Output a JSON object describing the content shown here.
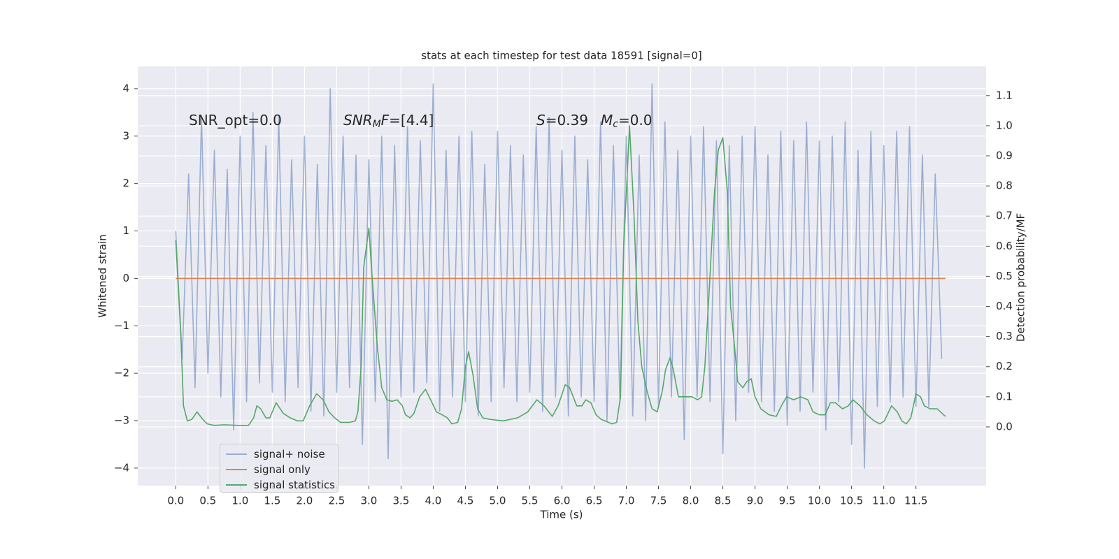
{
  "chart_data": {
    "type": "line",
    "title": "stats at each timestep for test data 18591 [signal=0]",
    "xlabel": "Time (s)",
    "ylabel": "Whitened strain",
    "y2label": "Detection probability/MF",
    "xlim": [
      -0.59,
      12.59
    ],
    "ylim": [
      -4.37,
      4.47
    ],
    "y2lim": [
      -0.195,
      1.197
    ],
    "xticks": [
      {
        "value": 0,
        "label": "0.0"
      },
      0.5,
      {
        "value": 1,
        "label": "1.0"
      },
      1.5,
      {
        "value": 2,
        "label": "2.0"
      },
      2.5,
      {
        "value": 3,
        "label": "3.0"
      },
      3.5,
      {
        "value": 4,
        "label": "4.0"
      },
      4.5,
      {
        "value": 5,
        "label": "5.0"
      },
      5.5,
      {
        "value": 6,
        "label": "6.0"
      },
      6.5,
      {
        "value": 7,
        "label": "7.0"
      },
      7.5,
      {
        "value": 8,
        "label": "8.0"
      },
      8.5,
      {
        "value": 9,
        "label": "9.0"
      },
      9.5,
      {
        "value": 10,
        "label": "10.0"
      },
      10.5,
      {
        "value": 11,
        "label": "11.0"
      },
      11.5
    ],
    "yticks": [
      {
        "value": -4,
        "label": "−4"
      },
      {
        "value": -3,
        "label": "−3"
      },
      {
        "value": -2,
        "label": "−2"
      },
      {
        "value": -1,
        "label": "−1"
      },
      0,
      1,
      2,
      3,
      4
    ],
    "y2ticks": [
      {
        "value": 0,
        "label": "0.0"
      },
      0.1,
      0.2,
      0.3,
      0.4,
      0.5,
      0.6,
      0.7,
      0.8,
      0.9,
      {
        "value": 1,
        "label": "1.0"
      },
      1.1
    ],
    "grid": true,
    "legend": "lower left",
    "annotations": [
      [
        {
          "text": "SNR_opt=0.0"
        }
      ],
      [
        {
          "text": "SNR",
          "italic": true
        },
        {
          "text": "M",
          "italic": true,
          "sub": true
        },
        {
          "text": "F",
          "italic": true
        },
        {
          "text": "=[4.4]"
        }
      ],
      [
        {
          "text": "S",
          "italic": true
        },
        {
          "text": "=0.39"
        }
      ],
      [
        {
          "text": "M",
          "italic": true
        },
        {
          "text": "c",
          "italic": true,
          "sub": true
        },
        {
          "text": "=0.0"
        }
      ]
    ],
    "series": [
      {
        "name": "signal+ noise",
        "color": "#4c72b0",
        "opacity": 0.5,
        "axis": "y",
        "x": [
          0.0,
          0.1,
          0.2,
          0.3,
          0.4,
          0.5,
          0.6,
          0.7,
          0.8,
          0.9,
          1.0,
          1.1,
          1.2,
          1.3,
          1.4,
          1.5,
          1.6,
          1.7,
          1.8,
          1.9,
          2.0,
          2.1,
          2.2,
          2.3,
          2.4,
          2.5,
          2.6,
          2.7,
          2.8,
          2.9,
          3.0,
          3.1,
          3.2,
          3.3,
          3.4,
          3.5,
          3.6,
          3.7,
          3.8,
          3.9,
          4.0,
          4.1,
          4.2,
          4.3,
          4.4,
          4.5,
          4.6,
          4.7,
          4.8,
          4.9,
          5.0,
          5.1,
          5.2,
          5.3,
          5.4,
          5.5,
          5.6,
          5.7,
          5.8,
          5.9,
          6.0,
          6.1,
          6.2,
          6.3,
          6.4,
          6.5,
          6.6,
          6.7,
          6.8,
          6.9,
          7.0,
          7.1,
          7.2,
          7.3,
          7.4,
          7.5,
          7.6,
          7.7,
          7.8,
          7.9,
          8.0,
          8.1,
          8.2,
          8.3,
          8.4,
          8.5,
          8.6,
          8.7,
          8.8,
          8.9,
          9.0,
          9.1,
          9.2,
          9.3,
          9.4,
          9.5,
          9.6,
          9.7,
          9.8,
          9.9,
          10.0,
          10.1,
          10.2,
          10.3,
          10.4,
          10.5,
          10.6,
          10.7,
          10.8,
          10.9,
          11.0,
          11.1,
          11.2,
          11.3,
          11.4,
          11.5,
          11.6,
          11.7,
          11.8,
          11.9
        ],
        "values": [
          1.0,
          -1.7,
          2.2,
          -2.3,
          3.4,
          -2.0,
          2.7,
          -2.5,
          2.3,
          -3.2,
          3.0,
          -2.6,
          3.5,
          -2.2,
          2.8,
          -2.4,
          3.4,
          -2.6,
          2.5,
          -2.3,
          3.0,
          -2.8,
          2.4,
          -2.9,
          4.0,
          -2.4,
          3.0,
          -2.3,
          2.6,
          -3.5,
          2.5,
          -2.6,
          3.0,
          -3.8,
          2.8,
          -2.5,
          3.2,
          -2.4,
          2.9,
          -2.2,
          4.1,
          -2.8,
          2.7,
          -2.5,
          3.0,
          -2.6,
          3.1,
          -2.9,
          2.4,
          -2.6,
          3.1,
          -2.3,
          2.8,
          -2.6,
          2.6,
          -2.4,
          3.2,
          -2.8,
          3.4,
          -2.5,
          2.7,
          -2.9,
          3.0,
          -2.5,
          2.5,
          -2.6,
          3.3,
          -3.0,
          2.8,
          -2.6,
          3.0,
          -2.9,
          2.6,
          -3.0,
          4.1,
          -2.7,
          3.3,
          -2.5,
          2.7,
          -3.4,
          3.0,
          -2.5,
          3.2,
          -2.6,
          2.9,
          -3.7,
          2.8,
          -3.0,
          3.0,
          -2.4,
          3.2,
          -2.6,
          2.6,
          -2.8,
          3.1,
          -3.1,
          2.9,
          -2.8,
          3.3,
          -2.4,
          2.9,
          -3.2,
          3.0,
          -2.6,
          3.3,
          -3.5,
          2.7,
          -4.0,
          3.1,
          -2.7,
          2.8,
          -2.6,
          3.1,
          -2.5,
          3.2,
          -2.7,
          2.6,
          -2.7,
          2.2,
          -1.7
        ]
      },
      {
        "name": "signal only",
        "color": "#dd8452",
        "opacity": 1,
        "axis": "y",
        "x": [
          0.0,
          11.96
        ],
        "values": [
          0,
          0
        ]
      },
      {
        "name": "signal statistics",
        "color": "#55a868",
        "opacity": 1,
        "axis": "y2",
        "x": [
          0.0,
          0.08,
          0.12,
          0.18,
          0.25,
          0.33,
          0.42,
          0.49,
          0.6,
          0.75,
          0.97,
          1.13,
          1.21,
          1.26,
          1.32,
          1.4,
          1.46,
          1.56,
          1.67,
          1.78,
          1.89,
          1.98,
          2.08,
          2.19,
          2.29,
          2.38,
          2.47,
          2.56,
          2.7,
          2.79,
          2.83,
          2.88,
          2.92,
          3.0,
          3.05,
          3.13,
          3.2,
          3.28,
          3.36,
          3.44,
          3.52,
          3.57,
          3.64,
          3.7,
          3.79,
          3.88,
          3.96,
          4.05,
          4.14,
          4.22,
          4.29,
          4.38,
          4.44,
          4.5,
          4.55,
          4.62,
          4.69,
          4.77,
          4.88,
          5.09,
          5.31,
          5.47,
          5.61,
          5.72,
          5.85,
          5.94,
          6.05,
          6.12,
          6.23,
          6.31,
          6.37,
          6.45,
          6.53,
          6.61,
          6.78,
          6.85,
          6.91,
          6.96,
          7.05,
          7.12,
          7.18,
          7.24,
          7.32,
          7.4,
          7.48,
          7.56,
          7.61,
          7.68,
          7.73,
          7.81,
          7.92,
          8.02,
          8.11,
          8.17,
          8.22,
          8.3,
          8.37,
          8.43,
          8.5,
          8.57,
          8.62,
          8.68,
          8.73,
          8.81,
          8.87,
          8.94,
          9.0,
          9.09,
          9.22,
          9.33,
          9.41,
          9.49,
          9.6,
          9.71,
          9.82,
          9.9,
          10.0,
          10.09,
          10.17,
          10.25,
          10.36,
          10.45,
          10.52,
          10.63,
          10.74,
          10.85,
          10.94,
          11.01,
          11.12,
          11.21,
          11.28,
          11.35,
          11.42,
          11.5,
          11.57,
          11.63,
          11.72,
          11.83,
          11.93,
          11.96
        ],
        "values": [
          0.62,
          0.3,
          0.07,
          0.02,
          0.025,
          0.05,
          0.025,
          0.01,
          0.005,
          0.007,
          0.005,
          0.005,
          0.03,
          0.07,
          0.06,
          0.03,
          0.03,
          0.08,
          0.045,
          0.03,
          0.02,
          0.02,
          0.07,
          0.11,
          0.09,
          0.05,
          0.03,
          0.015,
          0.015,
          0.02,
          0.05,
          0.2,
          0.53,
          0.66,
          0.5,
          0.27,
          0.13,
          0.09,
          0.085,
          0.09,
          0.07,
          0.04,
          0.03,
          0.045,
          0.1,
          0.125,
          0.09,
          0.05,
          0.04,
          0.03,
          0.01,
          0.015,
          0.06,
          0.2,
          0.25,
          0.17,
          0.06,
          0.03,
          0.025,
          0.02,
          0.03,
          0.05,
          0.09,
          0.07,
          0.035,
          0.07,
          0.14,
          0.13,
          0.07,
          0.07,
          0.09,
          0.08,
          0.04,
          0.025,
          0.01,
          0.015,
          0.1,
          0.6,
          1.0,
          0.7,
          0.35,
          0.2,
          0.12,
          0.06,
          0.05,
          0.12,
          0.19,
          0.23,
          0.19,
          0.1,
          0.1,
          0.1,
          0.09,
          0.1,
          0.2,
          0.5,
          0.78,
          0.92,
          0.96,
          0.78,
          0.4,
          0.27,
          0.15,
          0.13,
          0.15,
          0.16,
          0.1,
          0.06,
          0.04,
          0.035,
          0.07,
          0.1,
          0.09,
          0.1,
          0.09,
          0.05,
          0.04,
          0.04,
          0.08,
          0.08,
          0.06,
          0.07,
          0.09,
          0.07,
          0.04,
          0.02,
          0.01,
          0.02,
          0.07,
          0.05,
          0.02,
          0.01,
          0.03,
          0.11,
          0.1,
          0.07,
          0.06,
          0.06,
          0.04,
          0.035
        ]
      }
    ]
  }
}
